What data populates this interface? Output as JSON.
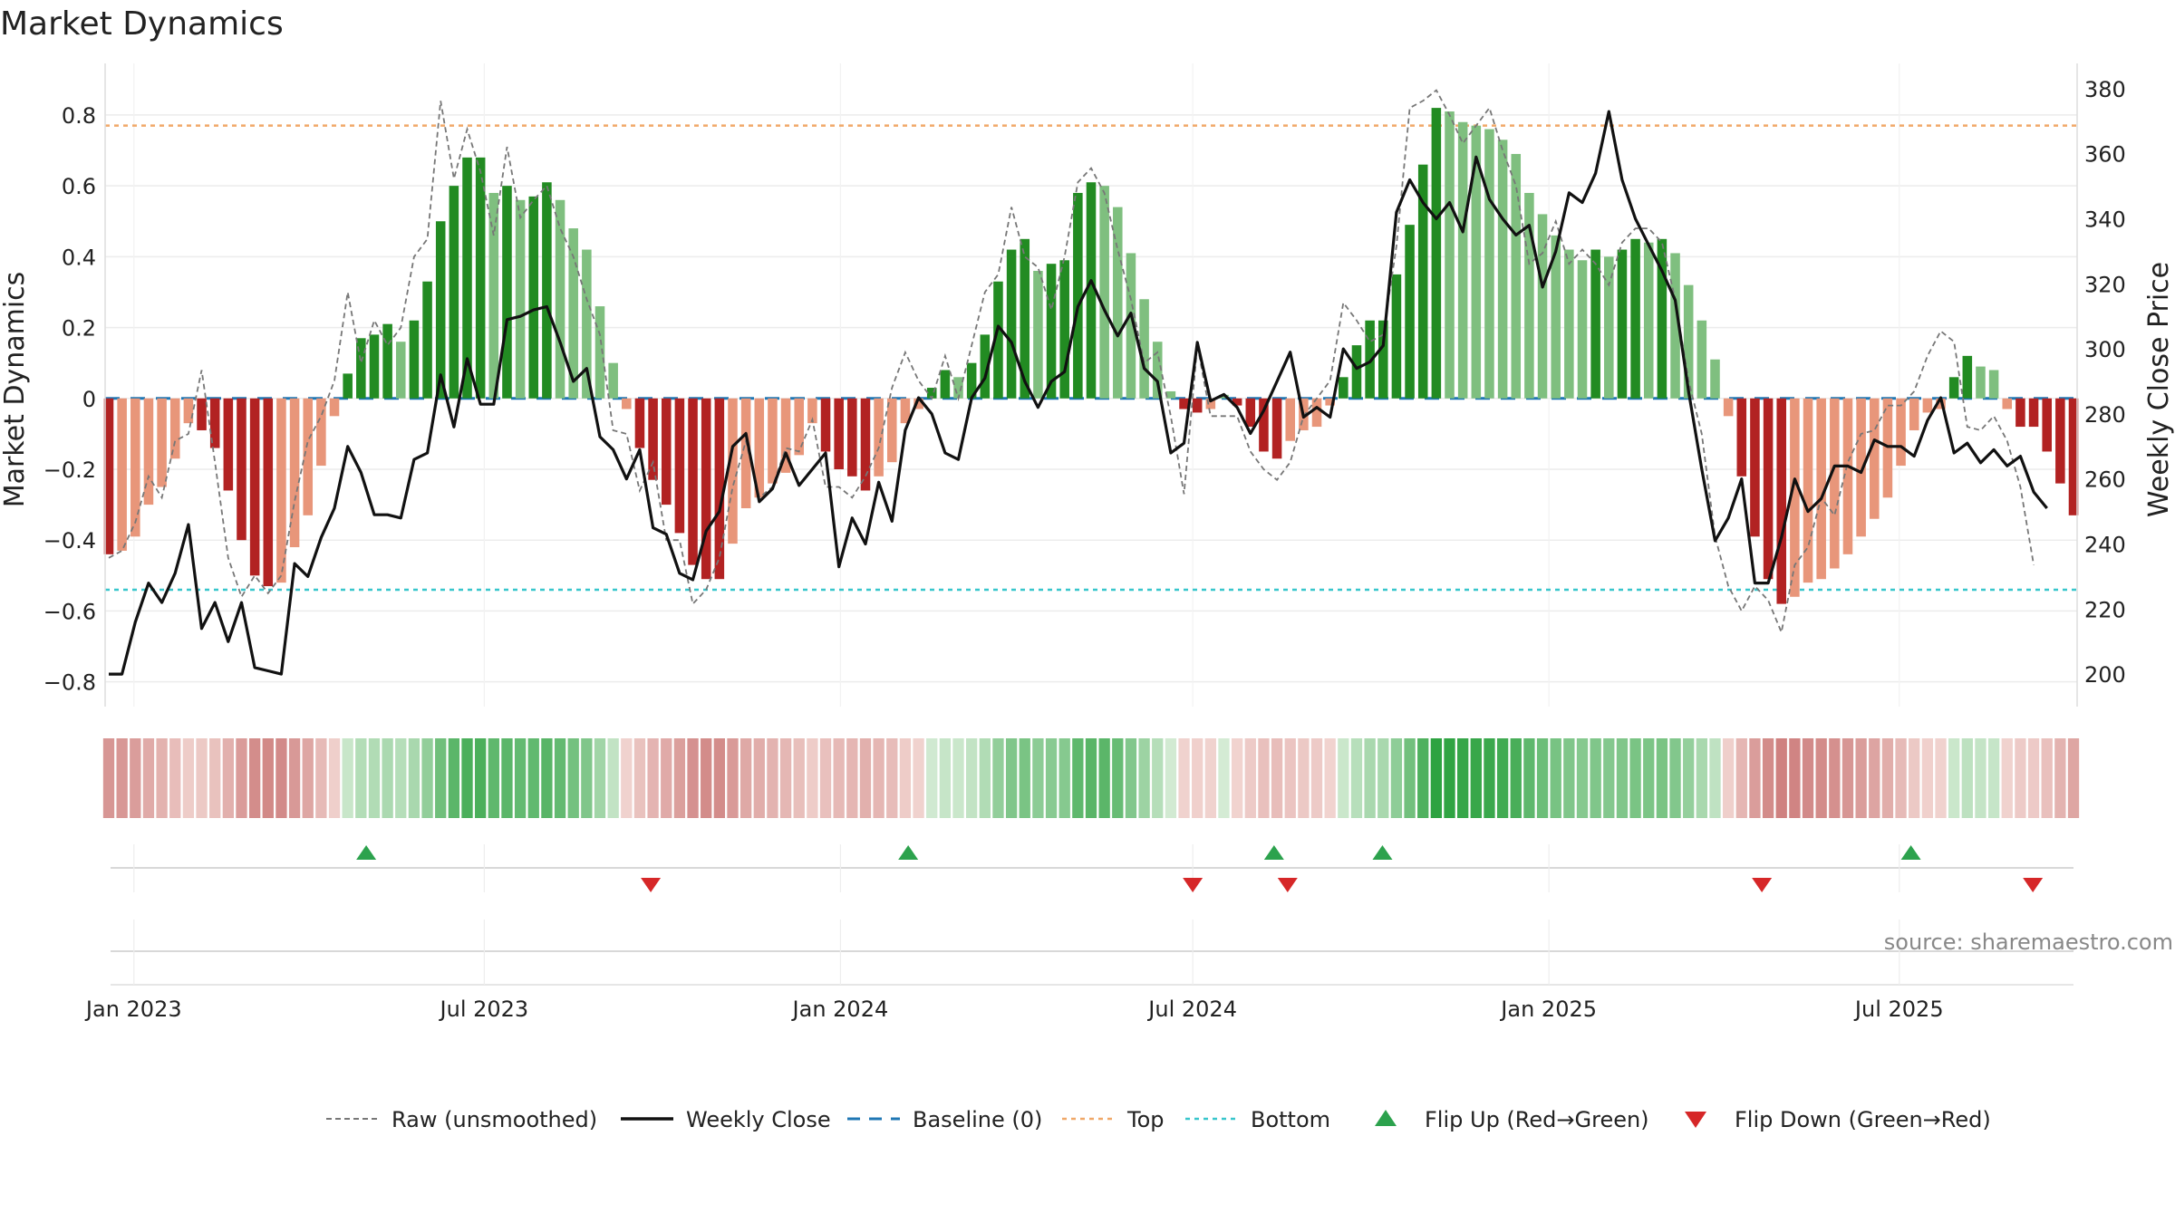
{
  "chart_data": {
    "type": "bar",
    "title": "Market Dynamics",
    "ylabel": "Market Dynamics",
    "y2label": "Weekly Close Price",
    "ylim": [
      -0.87,
      0.92
    ],
    "y2lim": [
      190,
      385
    ],
    "yticks": [
      "0.8",
      "0.6",
      "0.4",
      "0.2",
      "0",
      "−0.2",
      "−0.4",
      "−0.6",
      "−0.8"
    ],
    "ytick_values": [
      0.8,
      0.6,
      0.4,
      0.2,
      0,
      -0.2,
      -0.4,
      -0.6,
      -0.8
    ],
    "y2ticks": [
      "380",
      "360",
      "340",
      "320",
      "300",
      "280",
      "260",
      "240",
      "220",
      "200"
    ],
    "y2tick_values": [
      380,
      360,
      340,
      320,
      300,
      280,
      260,
      240,
      220,
      200
    ],
    "xticks": [
      "Jan 2023",
      "Jul 2023",
      "Jan 2024",
      "Jul 2024",
      "Jan 2025",
      "Jul 2025"
    ],
    "xtick_dates": [
      "2023-01-01",
      "2023-07-01",
      "2024-01-01",
      "2024-07-01",
      "2025-01-01",
      "2025-07-01"
    ],
    "first_week": "2022-12-19",
    "last_week": "2025-09-29",
    "top_level": 0.77,
    "bottom_level": -0.54,
    "baseline": 0,
    "source": "source: sharemaestro.com",
    "legend": [
      "Raw (unsmoothed)",
      "Weekly Close",
      "Baseline (0)",
      "Top",
      "Bottom",
      "Flip Up (Red→Green)",
      "Flip Down (Green→Red)"
    ],
    "grid": true,
    "legend_position": "bottom",
    "colors": {
      "strong_up": "#228b22",
      "weak_up": "#7fbf7f",
      "strong_down": "#b22222",
      "weak_down": "#e8967a",
      "close": "#111111",
      "raw": "#777777",
      "baseline": "#1f77b4",
      "top": "#f0a868",
      "bottom": "#38c6cc",
      "flip_up": "#2ca24d",
      "flip_down": "#d62728"
    },
    "series": [
      {
        "name": "Market Dynamics",
        "values": [
          -0.44,
          -0.43,
          -0.39,
          -0.3,
          -0.25,
          -0.17,
          -0.07,
          -0.09,
          -0.14,
          -0.26,
          -0.4,
          -0.5,
          -0.53,
          -0.52,
          -0.42,
          -0.33,
          -0.19,
          -0.05,
          0.07,
          0.17,
          0.18,
          0.21,
          0.16,
          0.22,
          0.33,
          0.5,
          0.6,
          0.68,
          0.68,
          0.58,
          0.6,
          0.56,
          0.57,
          0.61,
          0.56,
          0.48,
          0.42,
          0.26,
          0.1,
          -0.03,
          -0.14,
          -0.23,
          -0.3,
          -0.38,
          -0.47,
          -0.51,
          -0.51,
          -0.41,
          -0.31,
          -0.28,
          -0.24,
          -0.21,
          -0.16,
          -0.07,
          -0.15,
          -0.2,
          -0.22,
          -0.26,
          -0.22,
          -0.18,
          -0.07,
          -0.03,
          0.03,
          0.08,
          0.06,
          0.1,
          0.18,
          0.33,
          0.42,
          0.45,
          0.36,
          0.38,
          0.39,
          0.58,
          0.61,
          0.6,
          0.54,
          0.41,
          0.28,
          0.16,
          0.02,
          -0.03,
          -0.04,
          -0.03,
          0.01,
          -0.02,
          -0.08,
          -0.15,
          -0.17,
          -0.12,
          -0.09,
          -0.08,
          -0.02,
          0.06,
          0.15,
          0.22,
          0.22,
          0.35,
          0.49,
          0.66,
          0.82,
          0.81,
          0.78,
          0.77,
          0.76,
          0.73,
          0.69,
          0.58,
          0.52,
          0.46,
          0.42,
          0.39,
          0.42,
          0.4,
          0.42,
          0.45,
          0.44,
          0.45,
          0.41,
          0.32,
          0.22,
          0.11,
          -0.05,
          -0.22,
          -0.39,
          -0.51,
          -0.58,
          -0.56,
          -0.52,
          -0.51,
          -0.48,
          -0.44,
          -0.39,
          -0.34,
          -0.28,
          -0.19,
          -0.09,
          -0.04,
          -0.03,
          0.06,
          0.12,
          0.09,
          0.08,
          -0.03,
          -0.08,
          -0.08,
          -0.15,
          -0.24,
          -0.33
        ]
      },
      {
        "name": "Weekly Close",
        "values": [
          200,
          200,
          216,
          228,
          222,
          231,
          246,
          214,
          222,
          210,
          222,
          202,
          201,
          200,
          234,
          230,
          242,
          251,
          270,
          262,
          249,
          249,
          248,
          266,
          268,
          292,
          276,
          297,
          283,
          283,
          309,
          310,
          312,
          313,
          302,
          290,
          294,
          273,
          269,
          260,
          269,
          245,
          243,
          231,
          229,
          244,
          250,
          270,
          274,
          253,
          257,
          268,
          258,
          263,
          268,
          233,
          248,
          240,
          259,
          247,
          275,
          285,
          280,
          268,
          266,
          285,
          291,
          307,
          302,
          290,
          282,
          290,
          293,
          313,
          321,
          312,
          304,
          311,
          294,
          290,
          268,
          271,
          302,
          284,
          286,
          282,
          274,
          281,
          290,
          299,
          279,
          282,
          279,
          300,
          294,
          296,
          301,
          342,
          352,
          345,
          340,
          345,
          336,
          359,
          346,
          340,
          335,
          338,
          319,
          330,
          348,
          345,
          354,
          373,
          352,
          340,
          332,
          324,
          315,
          287,
          263,
          241,
          248,
          260,
          228,
          228,
          242,
          260,
          250,
          254,
          264,
          264,
          262,
          272,
          270,
          270,
          267,
          278,
          285,
          268,
          271,
          265,
          269,
          264,
          267,
          256,
          251
        ]
      },
      {
        "name": "Raw (unsmoothed)",
        "values": [
          -0.45,
          -0.43,
          -0.35,
          -0.22,
          -0.28,
          -0.12,
          -0.1,
          0.08,
          -0.18,
          -0.45,
          -0.56,
          -0.5,
          -0.55,
          -0.5,
          -0.29,
          -0.12,
          -0.05,
          0.05,
          0.3,
          0.1,
          0.22,
          0.15,
          0.2,
          0.4,
          0.45,
          0.84,
          0.62,
          0.76,
          0.64,
          0.46,
          0.71,
          0.51,
          0.56,
          0.6,
          0.48,
          0.4,
          0.28,
          0.18,
          -0.09,
          -0.1,
          -0.26,
          -0.18,
          -0.4,
          -0.4,
          -0.58,
          -0.54,
          -0.45,
          -0.25,
          -0.12,
          -0.28,
          -0.25,
          -0.14,
          -0.15,
          -0.06,
          -0.25,
          -0.25,
          -0.28,
          -0.22,
          -0.14,
          0.03,
          0.13,
          0.05,
          0.0,
          0.12,
          0.0,
          0.15,
          0.3,
          0.35,
          0.54,
          0.4,
          0.37,
          0.25,
          0.4,
          0.61,
          0.65,
          0.58,
          0.42,
          0.28,
          0.1,
          0.13,
          -0.05,
          -0.27,
          0.15,
          -0.05,
          -0.05,
          -0.05,
          -0.15,
          -0.2,
          -0.23,
          -0.18,
          -0.05,
          0.0,
          0.05,
          0.27,
          0.22,
          0.16,
          0.18,
          0.43,
          0.82,
          0.84,
          0.87,
          0.8,
          0.72,
          0.77,
          0.82,
          0.7,
          0.6,
          0.38,
          0.41,
          0.5,
          0.38,
          0.42,
          0.38,
          0.32,
          0.44,
          0.48,
          0.48,
          0.44,
          0.28,
          0.05,
          -0.1,
          -0.39,
          -0.53,
          -0.6,
          -0.53,
          -0.57,
          -0.66,
          -0.47,
          -0.42,
          -0.28,
          -0.33,
          -0.18,
          -0.1,
          -0.09,
          -0.02,
          -0.02,
          0.02,
          0.12,
          0.19,
          0.16,
          -0.08,
          -0.09,
          -0.05,
          -0.12,
          -0.25,
          -0.47
        ]
      }
    ],
    "flip_up": [
      "2023-05-01",
      "2024-02-05",
      "2024-08-12",
      "2024-10-07",
      "2025-07-07"
    ],
    "flip_down": [
      "2023-09-25",
      "2024-07-01",
      "2024-08-19",
      "2025-04-21",
      "2025-09-08"
    ]
  }
}
